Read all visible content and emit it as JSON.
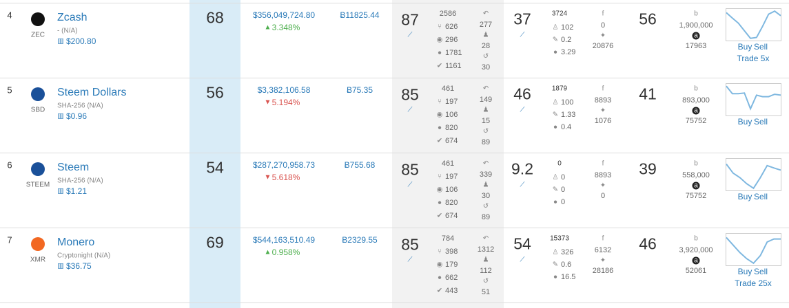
{
  "rows": [
    {
      "rank": 4,
      "name": "Zcash",
      "symbol": "ZEC",
      "algorithm": "- (N/A)",
      "price": "$200.80",
      "score": 68,
      "market_cap": "$356,049,724.80",
      "change": "3.348%",
      "direction": "up",
      "btc_price": "Ƀ11825.44",
      "dev_score": 87,
      "commits": 2586,
      "forks": 626,
      "watchers": 296,
      "issues": 1781,
      "closed": 1161,
      "replies": 277,
      "contributors": 28,
      "history": 30,
      "social_score": 37,
      "social_total": 3724,
      "users": 102,
      "activity": 0.2,
      "comments": 3.29,
      "facebook": 0,
      "twitter": 20876,
      "rating": 56,
      "bing": "1,900,000",
      "alexa": 17963,
      "trend": [
        90,
        72,
        55,
        30,
        5,
        8,
        45,
        85,
        95,
        80
      ],
      "links": [
        "Buy",
        "Sell",
        "Trade 5x"
      ]
    },
    {
      "rank": 5,
      "name": "Steem Dollars",
      "symbol": "SBD",
      "algorithm": "SHA-256 (N/A)",
      "price": "$0.96",
      "score": 56,
      "market_cap": "$3,382,106.58",
      "change": "5.194%",
      "direction": "down",
      "btc_price": "Ƀ75.35",
      "dev_score": 85,
      "commits": 461,
      "forks": 197,
      "watchers": 106,
      "issues": 820,
      "closed": 674,
      "replies": 149,
      "contributors": 15,
      "history": 89,
      "social_score": 46,
      "social_total": 1879,
      "users": 100,
      "activity": 1.33,
      "comments": 0.4,
      "facebook": 8893,
      "twitter": 1076,
      "rating": 41,
      "bing": "893,000",
      "alexa": 75752,
      "trend": [
        95,
        70,
        70,
        72,
        20,
        65,
        60,
        60,
        68,
        65
      ],
      "links": [
        "Buy",
        "Sell"
      ]
    },
    {
      "rank": 6,
      "name": "Steem",
      "symbol": "STEEM",
      "algorithm": "SHA-256 (N/A)",
      "price": "$1.21",
      "score": 54,
      "market_cap": "$287,270,958.73",
      "change": "5.618%",
      "direction": "down",
      "btc_price": "Ƀ755.68",
      "dev_score": 85,
      "commits": 461,
      "forks": 197,
      "watchers": 106,
      "issues": 820,
      "closed": 674,
      "replies": 339,
      "contributors": 30,
      "history": 89,
      "social_score": 9.2,
      "social_total": 0,
      "users": 0,
      "activity": 0,
      "comments": 0,
      "facebook": 8893,
      "twitter": 0,
      "rating": 39,
      "bing": "558,000",
      "alexa": 75752,
      "trend": [
        85,
        55,
        40,
        20,
        5,
        40,
        80,
        72,
        65
      ],
      "links": [
        "Buy",
        "Sell"
      ]
    },
    {
      "rank": 7,
      "name": "Monero",
      "symbol": "XMR",
      "algorithm": "Cryptonight (N/A)",
      "price": "$36.75",
      "score": 69,
      "market_cap": "$544,163,510.49",
      "change": "0.958%",
      "direction": "up",
      "btc_price": "Ƀ2329.55",
      "dev_score": 85,
      "commits": 784,
      "forks": 398,
      "watchers": 179,
      "issues": 662,
      "closed": 443,
      "replies": 1312,
      "contributors": 112,
      "history": 51,
      "social_score": 54,
      "social_total": 15373,
      "users": 326,
      "activity": 0.6,
      "comments": 16.5,
      "facebook": 6132,
      "twitter": 28186,
      "rating": 46,
      "bing": "3,920,000",
      "alexa": 52061,
      "trend": [
        90,
        65,
        40,
        20,
        5,
        30,
        75,
        85,
        85
      ],
      "links": [
        "Buy",
        "Sell",
        "Trade 25x"
      ]
    }
  ]
}
